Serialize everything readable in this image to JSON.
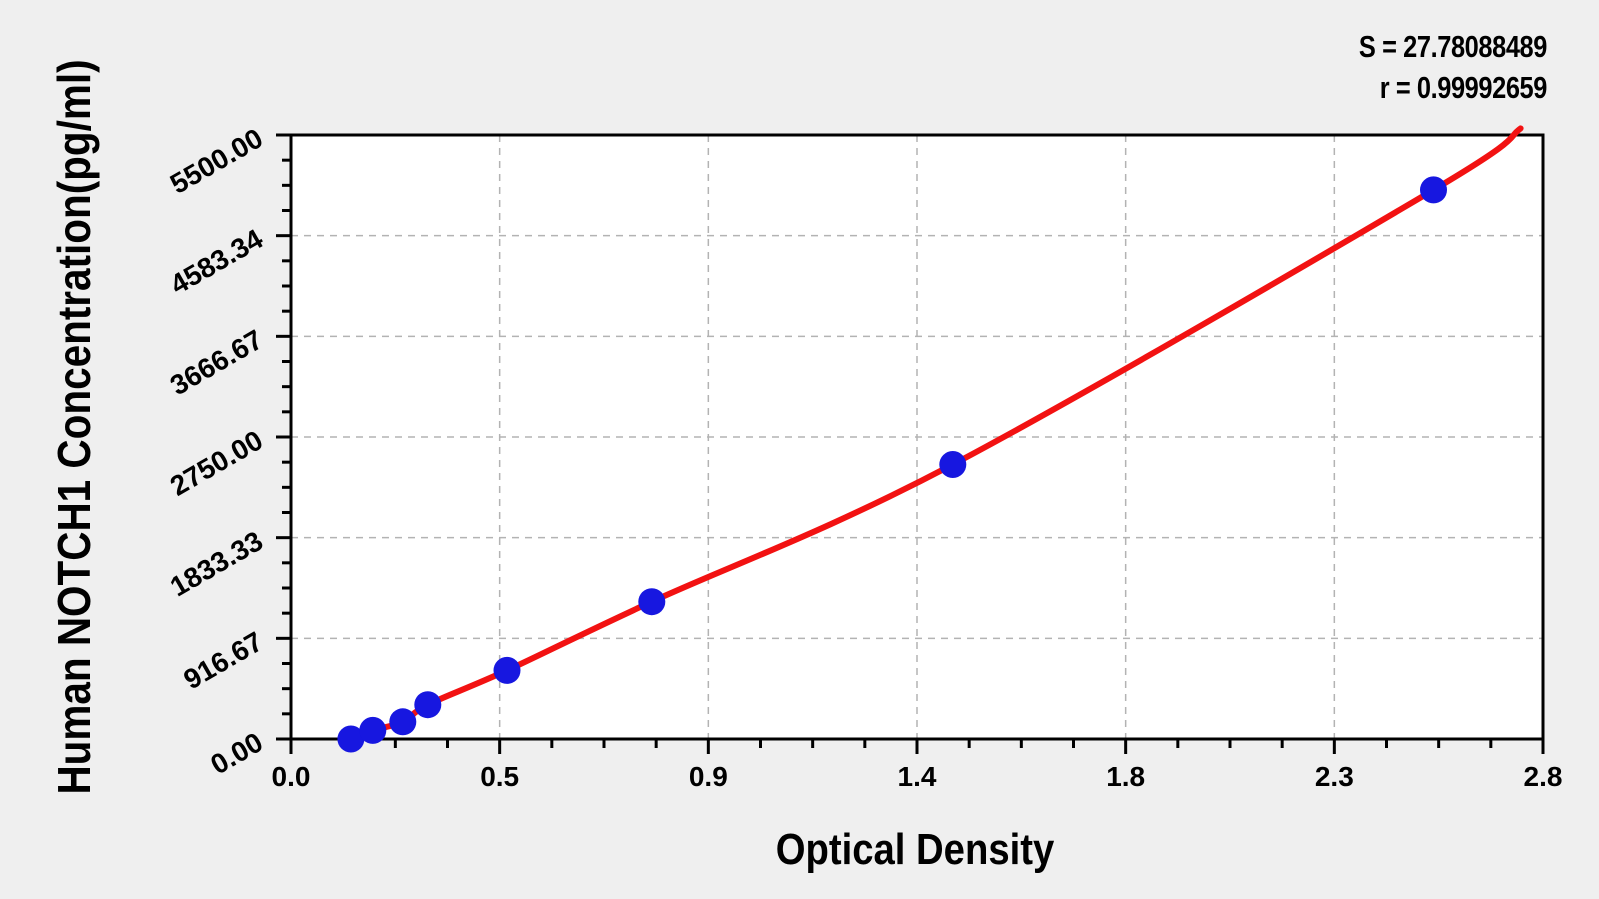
{
  "figure": {
    "background_color": "#efefef",
    "plot_background_color": "#ffffff",
    "axis_color": "#000000",
    "text_color": "#000000"
  },
  "chart_data": {
    "type": "scatter",
    "xlabel": "Optical Density",
    "ylabel": "Human NOTCH1 Concentration(pg/ml)",
    "xlim": [
      0,
      2.8
    ],
    "ylim": [
      0,
      5500
    ],
    "x_tick_labels": [
      "0.0",
      "0.5",
      "0.9",
      "1.4",
      "1.8",
      "2.3",
      "2.8"
    ],
    "y_tick_labels": [
      "0.00",
      "916.67",
      "1833.33",
      "2750.00",
      "3666.67",
      "4583.34",
      "5500.00"
    ],
    "minor_ticks_per_interval": 3,
    "grid": {
      "show": true,
      "line_style": "dashed",
      "color": "#b3b3b3",
      "on_major_ticks": true
    },
    "series": [
      {
        "name": "standard-points",
        "marker": "circle",
        "color": "#1717e0",
        "points": [
          {
            "optical_density": 0.134,
            "concentration_pg_ml": 0
          },
          {
            "optical_density": 0.183,
            "concentration_pg_ml": 78.125
          },
          {
            "optical_density": 0.25,
            "concentration_pg_ml": 156.25
          },
          {
            "optical_density": 0.306,
            "concentration_pg_ml": 312.5
          },
          {
            "optical_density": 0.483,
            "concentration_pg_ml": 625
          },
          {
            "optical_density": 0.807,
            "concentration_pg_ml": 1250
          },
          {
            "optical_density": 1.48,
            "concentration_pg_ml": 2500
          },
          {
            "optical_density": 2.555,
            "concentration_pg_ml": 5000
          }
        ]
      }
    ],
    "fit_curve": {
      "color": "#f21212",
      "through_series": "standard-points",
      "extends_to": {
        "optical_density": 2.75,
        "concentration_pg_ml": 5560
      }
    },
    "annotations": [
      {
        "text": "S = 27.78088489"
      },
      {
        "text": "r = 0.99992659"
      }
    ],
    "statistics": {
      "S": "27.78088489",
      "r": "0.99992659"
    }
  }
}
